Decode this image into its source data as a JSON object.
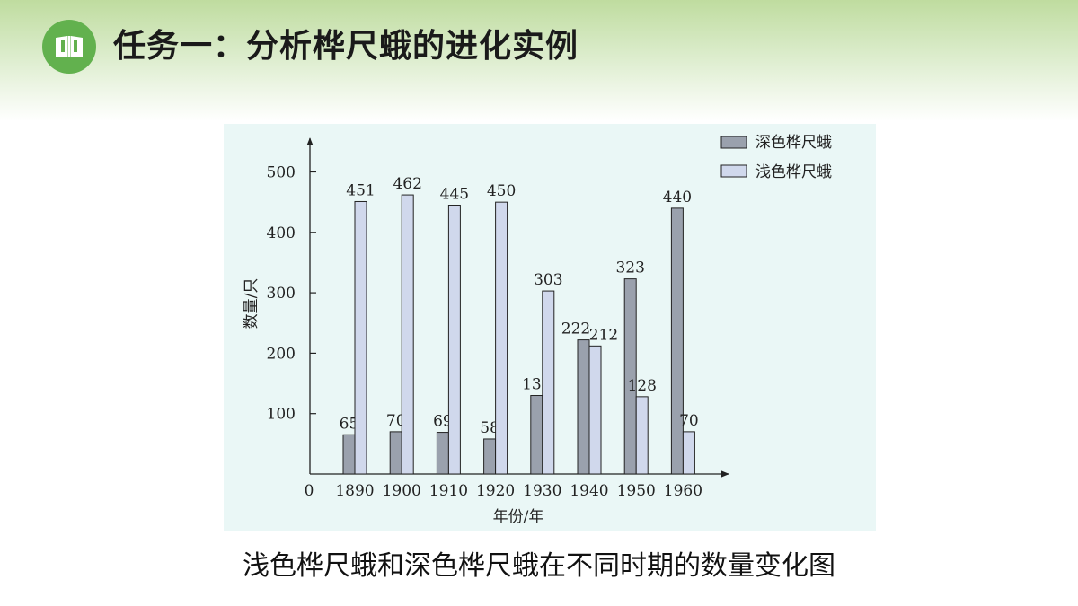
{
  "page": {
    "title": "任务一：分析桦尺蛾的进化实例",
    "caption": "浅色桦尺蛾和深色桦尺蛾在不同时期的数量变化图"
  },
  "logo": {
    "icon": "book-icon",
    "color": "#62b14e"
  },
  "chart_data": {
    "type": "bar",
    "categories": [
      "1890",
      "1900",
      "1910",
      "1920",
      "1930",
      "1940",
      "1950",
      "1960"
    ],
    "series": [
      {
        "name": "深色桦尺蛾",
        "color": "#9aa1ad",
        "values": [
          65,
          70,
          69,
          58,
          130,
          222,
          323,
          440
        ]
      },
      {
        "name": "浅色桦尺蛾",
        "color": "#d0d8ec",
        "values": [
          451,
          462,
          445,
          450,
          303,
          212,
          128,
          70
        ]
      }
    ],
    "xlabel": "年份/年",
    "ylabel": "数量/只",
    "origin_label": "0",
    "yticks": [
      100,
      200,
      300,
      400,
      500
    ],
    "ylim": [
      0,
      500
    ],
    "legend_position": "top-right",
    "grid": false
  }
}
